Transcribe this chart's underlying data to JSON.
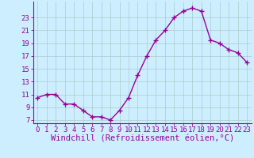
{
  "x": [
    0,
    1,
    2,
    3,
    4,
    5,
    6,
    7,
    8,
    9,
    10,
    11,
    12,
    13,
    14,
    15,
    16,
    17,
    18,
    19,
    20,
    21,
    22,
    23
  ],
  "y": [
    10.5,
    11.0,
    11.0,
    9.5,
    9.5,
    8.5,
    7.5,
    7.5,
    7.0,
    8.5,
    10.5,
    14.0,
    17.0,
    19.5,
    21.0,
    23.0,
    24.0,
    24.5,
    24.0,
    19.5,
    19.0,
    18.0,
    17.5,
    16.0
  ],
  "line_color": "#990099",
  "marker": "+",
  "marker_size": 4,
  "bg_color": "#cceeff",
  "grid_color": "#aacccc",
  "xlabel": "Windchill (Refroidissement éolien,°C)",
  "xlim": [
    -0.5,
    23.5
  ],
  "ylim": [
    6.5,
    25.5
  ],
  "yticks": [
    7,
    9,
    11,
    13,
    15,
    17,
    19,
    21,
    23
  ],
  "xticks": [
    0,
    1,
    2,
    3,
    4,
    5,
    6,
    7,
    8,
    9,
    10,
    11,
    12,
    13,
    14,
    15,
    16,
    17,
    18,
    19,
    20,
    21,
    22,
    23
  ],
  "tick_label_color": "#990099",
  "tick_label_fontsize": 6.5,
  "xlabel_fontsize": 7.5,
  "spine_color": "#990099",
  "linewidth": 1.0,
  "markeredgewidth": 1.0
}
